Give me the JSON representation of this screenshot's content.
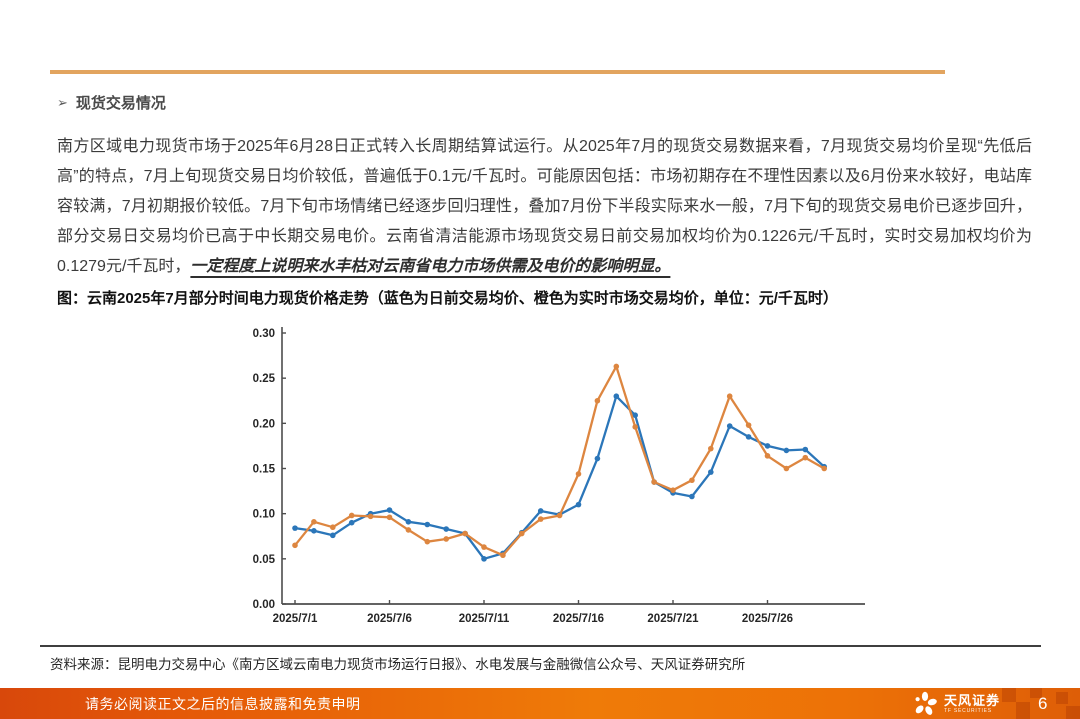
{
  "heading": {
    "bullet": "➢",
    "label": "现货交易情况"
  },
  "paragraph": {
    "lead": "南方区域电力现货市场于2025年6月28日正式转入长周期结算试运行。从2025年7月的现货交易数据来看，7月现货交易均价呈现“先低后高”的特点，7月上旬现货交易日均价较低，普遍低于0.1元/千瓦时。可能原因包括：市场初期存在不理性因素以及6月份来水较好，电站库容较满，7月初期报价较低。7月下旬市场情绪已经逐步回归理性，叠加7月份下半段实际来水一般，7月下旬的现货交易电价已逐步回升，部分交易日交易均价已高于中长期交易电价。云南省清洁能源市场现货交易日前交易加权均价为0.1226元/千瓦时，实时交易加权均价为0.1279元/千瓦时，",
    "emphasis": "一定程度上说明来水丰枯对云南省电力市场供需及电价的影响明显。"
  },
  "figure": {
    "title": "图：云南2025年7月部分时间电力现货价格走势（蓝色为日前交易均价、橙色为实时市场交易均价，单位：元/千瓦时）",
    "source": "资料来源：昆明电力交易中心《南方区域云南电力现货市场运行日报》、水电发展与金融微信公众号、天风证券研究所"
  },
  "chart_data": {
    "type": "line",
    "title": "云南2025年7月部分时间电力现货价格走势",
    "unit": "元/千瓦时",
    "x": [
      "2025/7/1",
      "2025/7/2",
      "2025/7/3",
      "2025/7/4",
      "2025/7/5",
      "2025/7/6",
      "2025/7/7",
      "2025/7/8",
      "2025/7/9",
      "2025/7/10",
      "2025/7/11",
      "2025/7/12",
      "2025/7/13",
      "2025/7/14",
      "2025/7/15",
      "2025/7/16",
      "2025/7/17",
      "2025/7/18",
      "2025/7/19",
      "2025/7/20",
      "2025/7/21",
      "2025/7/22",
      "2025/7/23",
      "2025/7/24",
      "2025/7/25",
      "2025/7/26",
      "2025/7/27",
      "2025/7/28",
      "2025/7/29"
    ],
    "series": [
      {
        "name": "日前交易均价",
        "color": "#2b76b9",
        "values": [
          0.084,
          0.081,
          0.076,
          0.09,
          0.1,
          0.104,
          0.091,
          0.088,
          0.083,
          0.078,
          0.05,
          0.056,
          0.079,
          0.103,
          0.099,
          0.11,
          0.161,
          0.23,
          0.209,
          0.135,
          0.123,
          0.119,
          0.146,
          0.197,
          0.185,
          0.175,
          0.17,
          0.171,
          0.152
        ]
      },
      {
        "name": "实时市场交易均价",
        "color": "#dd8640",
        "values": [
          0.065,
          0.091,
          0.085,
          0.098,
          0.097,
          0.096,
          0.082,
          0.069,
          0.072,
          0.078,
          0.063,
          0.054,
          0.078,
          0.094,
          0.098,
          0.144,
          0.225,
          0.263,
          0.196,
          0.135,
          0.126,
          0.137,
          0.172,
          0.23,
          0.198,
          0.164,
          0.15,
          0.162,
          0.15
        ]
      }
    ],
    "ylim": [
      0,
      0.3
    ],
    "ytick_step": 0.05,
    "xtick_labels": [
      "2025/7/1",
      "2025/7/6",
      "2025/7/11",
      "2025/7/16",
      "2025/7/21",
      "2025/7/26"
    ],
    "xtick_indices": [
      0,
      5,
      10,
      15,
      20,
      25
    ],
    "grid": false,
    "legend_position": "none"
  },
  "footer": {
    "disclaimer": "请务必阅读正文之后的信息披露和免责申明",
    "brand": "天风证券",
    "brand_sub": "TF SECURITIES",
    "page_number": "6"
  },
  "colors": {
    "top_rule": "#e2a45f",
    "series_blue": "#2b76b9",
    "series_orange": "#dd8640",
    "footer_gradient_left": "#d8480b",
    "footer_gradient_right": "#de5e07",
    "axis": "#4d4d4d"
  }
}
